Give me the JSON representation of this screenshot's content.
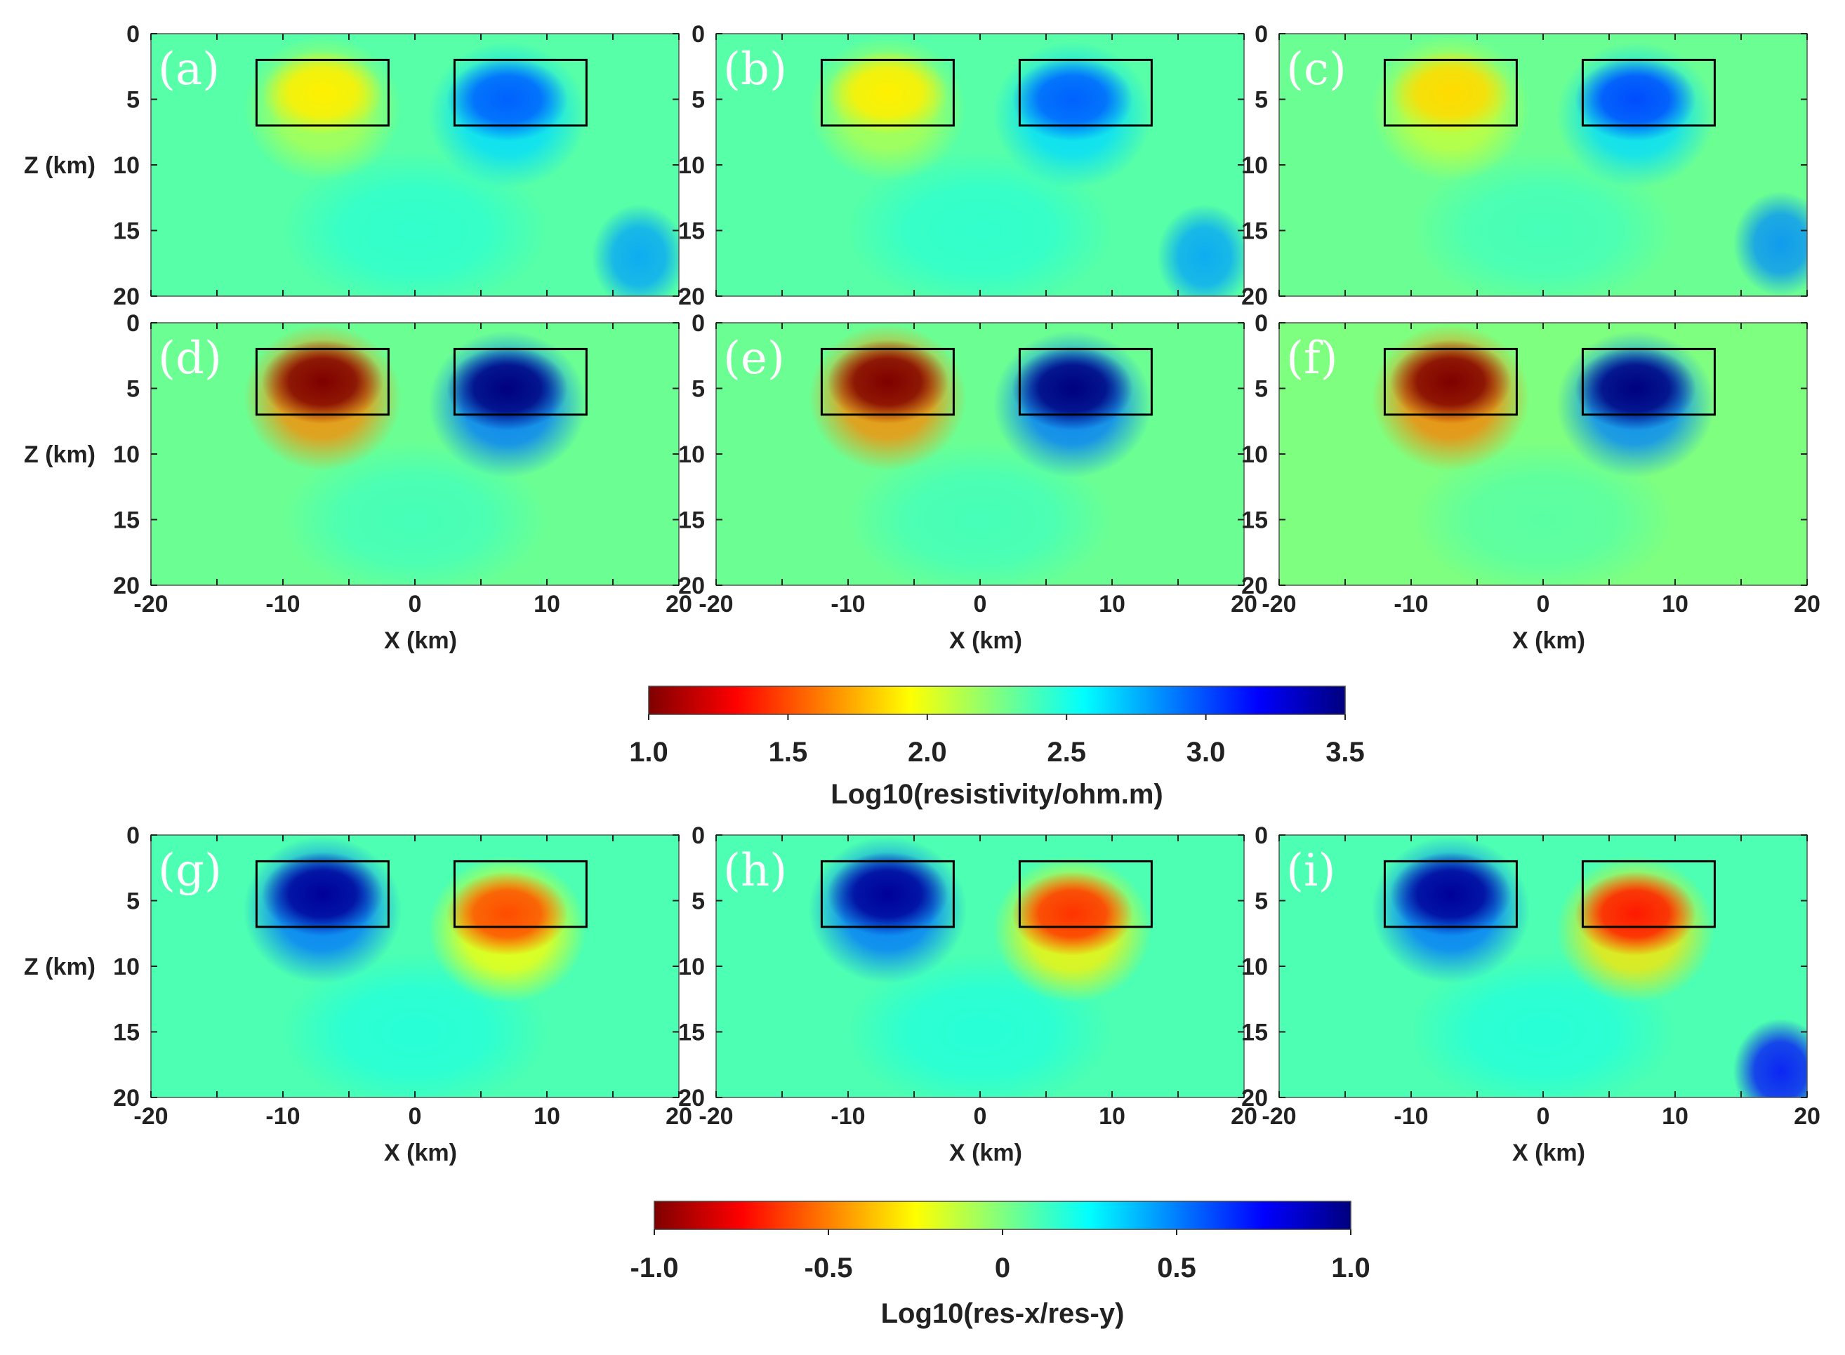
{
  "colors": {
    "jet": [
      "#7f0000",
      "#ff0000",
      "#ff7f00",
      "#ffff00",
      "#7fff7f",
      "#00ffff",
      "#007fff",
      "#0000ff",
      "#00007f"
    ],
    "background_field": "#49c79a",
    "box_stroke": "#000000"
  },
  "chart_data": [
    {
      "type": "heatmap",
      "group": "resistivity",
      "panels": [
        {
          "label": "(a)",
          "background_value": 2.35,
          "anomalies": [
            {
              "x": -7,
              "z": 4.5,
              "value": 1.9
            },
            {
              "x": 7,
              "z": 5,
              "value": 2.95
            }
          ],
          "spots": [
            {
              "x": 17,
              "z": 17,
              "value": 2.8
            }
          ]
        },
        {
          "label": "(b)",
          "background_value": 2.35,
          "anomalies": [
            {
              "x": -7,
              "z": 4.5,
              "value": 1.9
            },
            {
              "x": 7,
              "z": 5,
              "value": 2.95
            }
          ],
          "spots": [
            {
              "x": 17,
              "z": 17,
              "value": 2.8
            }
          ]
        },
        {
          "label": "(c)",
          "background_value": 2.3,
          "anomalies": [
            {
              "x": -7,
              "z": 4.5,
              "value": 1.85
            },
            {
              "x": 7,
              "z": 5,
              "value": 3.0
            }
          ],
          "spots": [
            {
              "x": 18,
              "z": 16,
              "value": 2.85
            }
          ]
        },
        {
          "label": "(d)",
          "background_value": 2.3,
          "anomalies": [
            {
              "x": -7,
              "z": 4.5,
              "value": 1.0
            },
            {
              "x": 7,
              "z": 5,
              "value": 3.5
            }
          ],
          "spots": []
        },
        {
          "label": "(e)",
          "background_value": 2.3,
          "anomalies": [
            {
              "x": -7,
              "z": 4.5,
              "value": 1.0
            },
            {
              "x": 7,
              "z": 5,
              "value": 3.5
            }
          ],
          "spots": []
        },
        {
          "label": "(f)",
          "background_value": 2.25,
          "anomalies": [
            {
              "x": -7,
              "z": 4.5,
              "value": 1.0
            },
            {
              "x": 7,
              "z": 5,
              "value": 3.5
            }
          ],
          "spots": []
        }
      ],
      "boxes": [
        {
          "x0": -12,
          "x1": -2,
          "z0": 2,
          "z1": 7
        },
        {
          "x0": 3,
          "x1": 13,
          "z0": 2,
          "z1": 7
        }
      ],
      "x_range": [
        -20,
        20
      ],
      "z_range": [
        0,
        20
      ],
      "colorbar": {
        "min": 1.0,
        "max": 3.5,
        "ticks": [
          "1.0",
          "1.5",
          "2.0",
          "2.5",
          "3.0",
          "3.5"
        ],
        "label": "Log10(resistivity/ohm.m)"
      }
    },
    {
      "type": "heatmap",
      "group": "anisotropy",
      "panels": [
        {
          "label": "(g)",
          "background_value": 0.1,
          "anomalies": [
            {
              "x": -7,
              "z": 4.5,
              "value": 0.95
            },
            {
              "x": 7,
              "z": 6,
              "value": -0.6
            }
          ],
          "spots": []
        },
        {
          "label": "(h)",
          "background_value": 0.1,
          "anomalies": [
            {
              "x": -7,
              "z": 4.5,
              "value": 0.95
            },
            {
              "x": 7,
              "z": 6,
              "value": -0.65
            }
          ],
          "spots": []
        },
        {
          "label": "(i)",
          "background_value": 0.1,
          "anomalies": [
            {
              "x": -7,
              "z": 4.5,
              "value": 0.95
            },
            {
              "x": 7,
              "z": 6,
              "value": -0.7
            }
          ],
          "spots": [
            {
              "x": 18,
              "z": 18,
              "value": 0.75
            }
          ]
        }
      ],
      "boxes": [
        {
          "x0": -12,
          "x1": -2,
          "z0": 2,
          "z1": 7
        },
        {
          "x0": 3,
          "x1": 13,
          "z0": 2,
          "z1": 7
        }
      ],
      "x_range": [
        -20,
        20
      ],
      "z_range": [
        0,
        20
      ],
      "colorbar": {
        "min": -1.0,
        "max": 1.0,
        "ticks": [
          "-1.0",
          "-0.5",
          "0",
          "0.5",
          "1.0"
        ],
        "label": "Log10(res-x/res-y)"
      }
    }
  ],
  "axes": {
    "xlabel": "X (km)",
    "ylabel": "Z (km)",
    "x_ticks": [
      "-20",
      "-10",
      "0",
      "10",
      "20"
    ],
    "z_ticks": [
      "0",
      "5",
      "10",
      "15",
      "20"
    ]
  }
}
